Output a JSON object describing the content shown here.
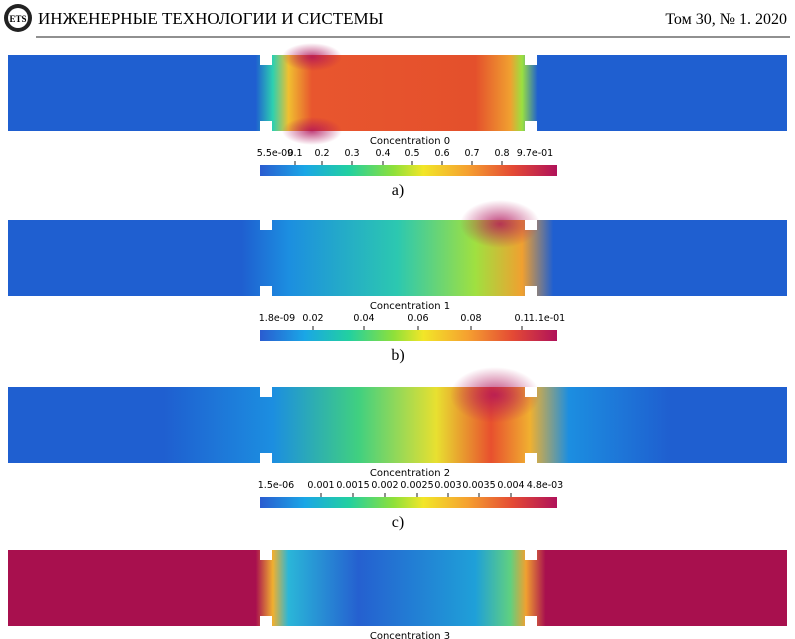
{
  "header": {
    "logo": "ETS",
    "journal": "ИНЖЕНЕРНЫЕ ТЕХНОЛОГИИ И СИСТЕМЫ",
    "issue": "Том 30, № 1. 2020"
  },
  "figures": [
    {
      "colorbar_title": "Concentration 0",
      "ticks": [
        "5.5e-09",
        "0.1",
        "0.2",
        "0.3",
        "0.4",
        "0.5",
        "0.6",
        "0.7",
        "0.8",
        "9.7e-01"
      ],
      "label": "a)"
    },
    {
      "colorbar_title": "Concentration 1",
      "ticks": [
        "1.8e-09",
        "0.02",
        "0.04",
        "0.06",
        "0.08",
        "0.1",
        "1.1e-01"
      ],
      "label": "b)"
    },
    {
      "colorbar_title": "Concentration 2",
      "ticks": [
        "1.5e-06",
        "0.001",
        "0.0015",
        "0.002",
        "0.0025",
        "0.003",
        "0.0035",
        "0.004",
        "4.8e-03"
      ],
      "label": "c)"
    },
    {
      "colorbar_title": "Concentration 3"
    }
  ]
}
